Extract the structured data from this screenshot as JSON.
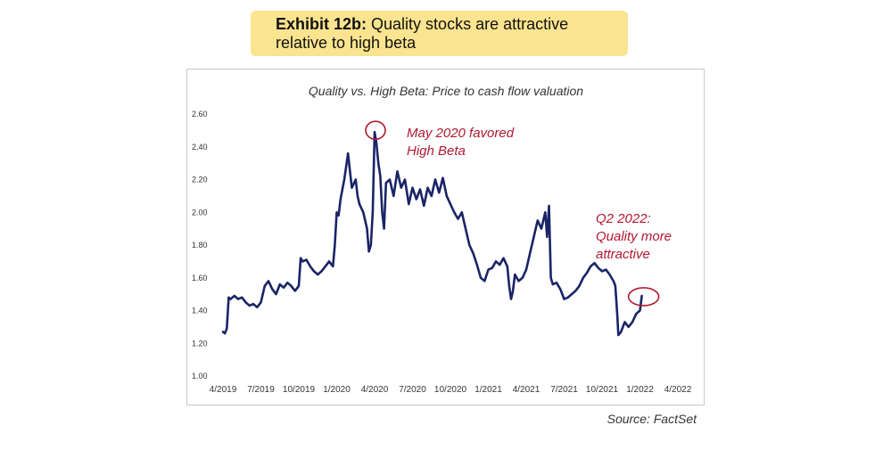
{
  "exhibit": {
    "label": "Exhibit 12b:",
    "text": "Quality stocks are attractive relative to high beta"
  },
  "source": "Source: FactSet",
  "chart_data": {
    "type": "line",
    "title": "Quality vs. High Beta: Price to cash flow valuation",
    "xlabel": "",
    "ylabel": "",
    "ylim": [
      1.0,
      2.6
    ],
    "yticks": [
      "1.00",
      "1.20",
      "1.40",
      "1.60",
      "1.80",
      "2.00",
      "2.20",
      "2.40",
      "2.60"
    ],
    "xticks": [
      "4/2019",
      "7/2019",
      "10/2019",
      "1/2020",
      "4/2020",
      "7/2020",
      "10/2020",
      "1/2021",
      "4/2021",
      "7/2021",
      "10/2021",
      "1/2022",
      "4/2022"
    ],
    "grid": false,
    "line_color": "#1a2466",
    "annotation_color": "#b0182e",
    "series": [
      {
        "values": [
          [
            0.0,
            1.27
          ],
          [
            0.05,
            1.26
          ],
          [
            0.1,
            1.29
          ],
          [
            0.15,
            1.48
          ],
          [
            0.2,
            1.47
          ],
          [
            0.3,
            1.49
          ],
          [
            0.4,
            1.47
          ],
          [
            0.5,
            1.48
          ],
          [
            0.6,
            1.45
          ],
          [
            0.7,
            1.43
          ],
          [
            0.8,
            1.44
          ],
          [
            0.9,
            1.42
          ],
          [
            1.0,
            1.45
          ],
          [
            1.1,
            1.55
          ],
          [
            1.2,
            1.58
          ],
          [
            1.3,
            1.53
          ],
          [
            1.4,
            1.5
          ],
          [
            1.5,
            1.56
          ],
          [
            1.6,
            1.54
          ],
          [
            1.7,
            1.57
          ],
          [
            1.8,
            1.55
          ],
          [
            1.9,
            1.52
          ],
          [
            2.0,
            1.55
          ],
          [
            2.05,
            1.72
          ],
          [
            2.1,
            1.7
          ],
          [
            2.2,
            1.71
          ],
          [
            2.3,
            1.67
          ],
          [
            2.4,
            1.64
          ],
          [
            2.5,
            1.62
          ],
          [
            2.6,
            1.64
          ],
          [
            2.7,
            1.67
          ],
          [
            2.8,
            1.7
          ],
          [
            2.9,
            1.67
          ],
          [
            2.95,
            1.8
          ],
          [
            3.0,
            2.0
          ],
          [
            3.05,
            1.98
          ],
          [
            3.1,
            2.08
          ],
          [
            3.2,
            2.2
          ],
          [
            3.3,
            2.36
          ],
          [
            3.35,
            2.25
          ],
          [
            3.4,
            2.15
          ],
          [
            3.5,
            2.2
          ],
          [
            3.55,
            2.1
          ],
          [
            3.6,
            2.05
          ],
          [
            3.7,
            2.0
          ],
          [
            3.8,
            1.9
          ],
          [
            3.85,
            1.76
          ],
          [
            3.9,
            1.8
          ],
          [
            3.95,
            2.0
          ],
          [
            4.0,
            2.49
          ],
          [
            4.05,
            2.42
          ],
          [
            4.1,
            2.3
          ],
          [
            4.15,
            2.22
          ],
          [
            4.2,
            2.0
          ],
          [
            4.25,
            1.9
          ],
          [
            4.3,
            2.18
          ],
          [
            4.4,
            2.2
          ],
          [
            4.5,
            2.1
          ],
          [
            4.6,
            2.25
          ],
          [
            4.7,
            2.15
          ],
          [
            4.8,
            2.2
          ],
          [
            4.9,
            2.05
          ],
          [
            5.0,
            2.15
          ],
          [
            5.1,
            2.08
          ],
          [
            5.2,
            2.14
          ],
          [
            5.3,
            2.04
          ],
          [
            5.4,
            2.15
          ],
          [
            5.5,
            2.1
          ],
          [
            5.6,
            2.2
          ],
          [
            5.7,
            2.12
          ],
          [
            5.8,
            2.21
          ],
          [
            5.9,
            2.1
          ],
          [
            6.0,
            2.05
          ],
          [
            6.1,
            2.0
          ],
          [
            6.2,
            1.96
          ],
          [
            6.3,
            2.0
          ],
          [
            6.4,
            1.9
          ],
          [
            6.5,
            1.8
          ],
          [
            6.6,
            1.75
          ],
          [
            6.7,
            1.68
          ],
          [
            6.8,
            1.6
          ],
          [
            6.9,
            1.58
          ],
          [
            7.0,
            1.65
          ],
          [
            7.1,
            1.66
          ],
          [
            7.2,
            1.7
          ],
          [
            7.3,
            1.68
          ],
          [
            7.4,
            1.72
          ],
          [
            7.5,
            1.67
          ],
          [
            7.55,
            1.55
          ],
          [
            7.6,
            1.47
          ],
          [
            7.65,
            1.52
          ],
          [
            7.7,
            1.62
          ],
          [
            7.8,
            1.58
          ],
          [
            7.9,
            1.6
          ],
          [
            8.0,
            1.65
          ],
          [
            8.1,
            1.75
          ],
          [
            8.2,
            1.85
          ],
          [
            8.3,
            1.95
          ],
          [
            8.4,
            1.9
          ],
          [
            8.5,
            2.0
          ],
          [
            8.55,
            1.85
          ],
          [
            8.6,
            2.04
          ],
          [
            8.65,
            1.6
          ],
          [
            8.7,
            1.56
          ],
          [
            8.8,
            1.57
          ],
          [
            8.9,
            1.53
          ],
          [
            9.0,
            1.47
          ],
          [
            9.1,
            1.48
          ],
          [
            9.2,
            1.5
          ],
          [
            9.3,
            1.52
          ],
          [
            9.4,
            1.55
          ],
          [
            9.5,
            1.6
          ],
          [
            9.6,
            1.63
          ],
          [
            9.7,
            1.67
          ],
          [
            9.8,
            1.69
          ],
          [
            9.9,
            1.66
          ],
          [
            10.0,
            1.64
          ],
          [
            10.1,
            1.65
          ],
          [
            10.2,
            1.62
          ],
          [
            10.3,
            1.58
          ],
          [
            10.35,
            1.55
          ],
          [
            10.4,
            1.38
          ],
          [
            10.43,
            1.25
          ],
          [
            10.5,
            1.27
          ],
          [
            10.6,
            1.33
          ],
          [
            10.7,
            1.3
          ],
          [
            10.8,
            1.33
          ],
          [
            10.9,
            1.38
          ],
          [
            11.0,
            1.4
          ],
          [
            11.05,
            1.49
          ]
        ]
      }
    ],
    "annotations": [
      {
        "text": [
          "May 2020 favored",
          "High Beta"
        ],
        "x": 4.0,
        "y": 2.49
      },
      {
        "text": [
          "Q2 2022:",
          "Quality more",
          "attractive"
        ],
        "x": 11.05,
        "y": 1.49
      }
    ]
  }
}
